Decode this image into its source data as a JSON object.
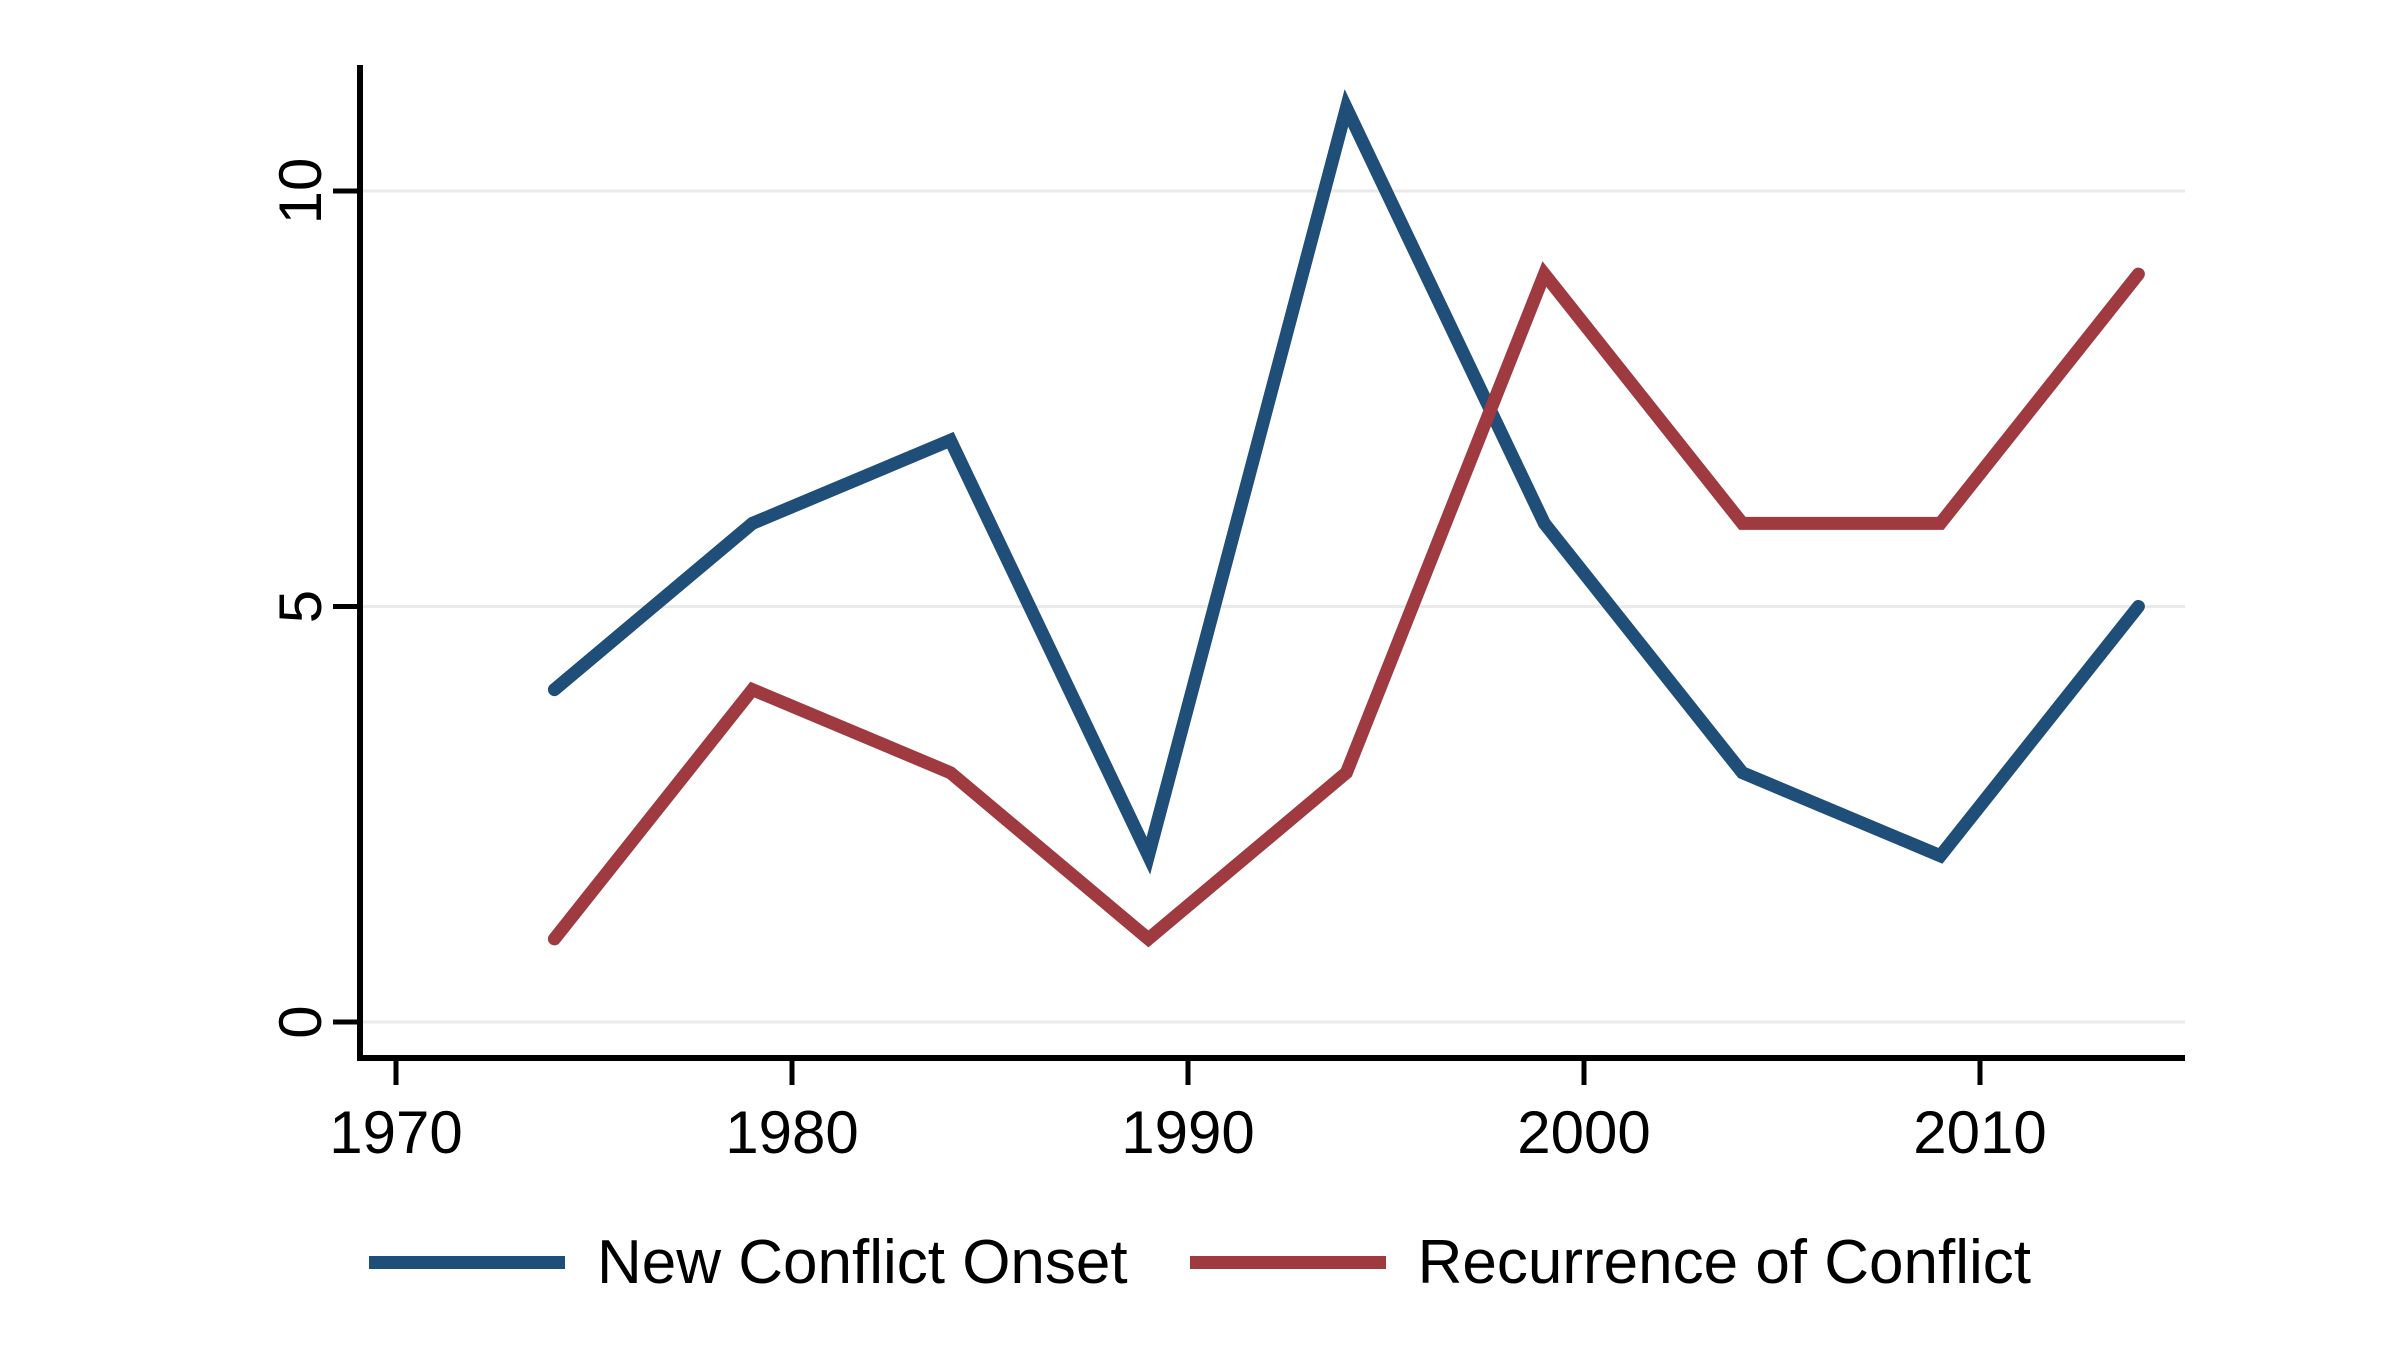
{
  "chart_data": {
    "type": "line",
    "x": [
      1974,
      1979,
      1984,
      1989,
      1994,
      1999,
      2004,
      2009,
      2014
    ],
    "series": [
      {
        "name": "New Conflict Onset",
        "color": "#1f4e79",
        "values": [
          4,
          6,
          7,
          2,
          11,
          6,
          3,
          2,
          5
        ]
      },
      {
        "name": "Recurrence of Conflict",
        "color": "#9e3a40",
        "values": [
          1,
          4,
          3,
          1,
          3,
          9,
          6,
          6,
          9
        ]
      }
    ],
    "title": "",
    "xlabel": "",
    "ylabel": "",
    "x_ticks": [
      "1970",
      "1980",
      "1990",
      "2000",
      "2010"
    ],
    "x_tick_values": [
      1970,
      1980,
      1990,
      2000,
      2010
    ],
    "y_ticks": [
      "0",
      "5",
      "10"
    ],
    "y_tick_values": [
      0,
      5,
      10
    ],
    "xlim": [
      1969.1,
      2015.2
    ],
    "ylim": [
      -0.45,
      11.5
    ],
    "grid": "horizontal",
    "gridline_color": "#eaeaea",
    "axis_color": "#000000",
    "tick_label_color": "#000000",
    "legend_position": "bottom-center",
    "background_color": "#ffffff"
  }
}
